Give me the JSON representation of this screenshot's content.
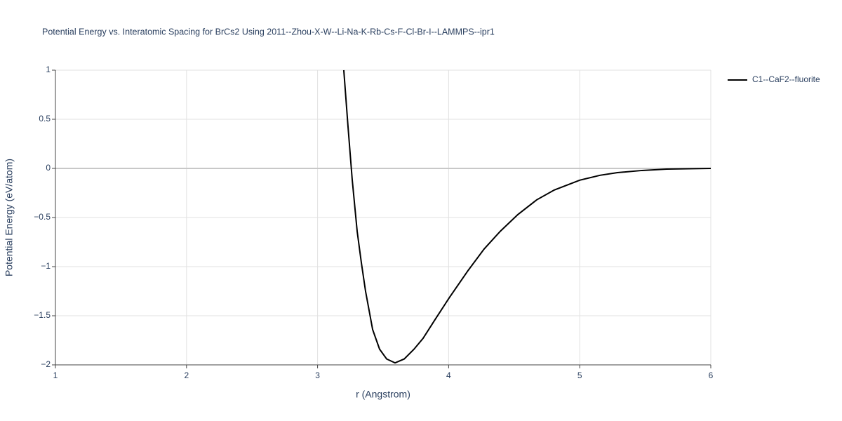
{
  "chart_data": {
    "type": "line",
    "title": "Potential Energy vs. Interatomic Spacing for BrCs2 Using 2011--Zhou-X-W--Li-Na-K-Rb-Cs-F-Cl-Br-I--LAMMPS--ipr1",
    "x_label": "r (Angstrom)",
    "y_label": "Potential Energy (eV/atom)",
    "xlim": [
      1,
      6
    ],
    "ylim": [
      -2,
      1
    ],
    "xticks": [
      1,
      2,
      3,
      4,
      5,
      6
    ],
    "yticks": [
      1,
      0.5,
      0,
      {
        "value": -0.5,
        "label": "−0.5"
      },
      {
        "value": -1,
        "label": "−1"
      },
      {
        "value": -1.5,
        "label": "−1.5"
      },
      {
        "value": -2,
        "label": "−2"
      }
    ],
    "grid": true,
    "legend": "top-right",
    "series": [
      {
        "name": "C1--CaF2--fluorite",
        "color": "#000000",
        "x": [
          3.2,
          3.232,
          3.264,
          3.302,
          3.334,
          3.366,
          3.42,
          3.473,
          3.527,
          3.591,
          3.661,
          3.736,
          3.805,
          3.896,
          4.003,
          4.148,
          4.271,
          4.394,
          4.528,
          4.672,
          4.806,
          5.0,
          5.155,
          5.288,
          5.475,
          5.663,
          6.0
        ],
        "values": [
          1.0,
          0.43,
          -0.11,
          -0.64,
          -0.96,
          -1.25,
          -1.64,
          -1.84,
          -1.94,
          -1.98,
          -1.94,
          -1.84,
          -1.73,
          -1.54,
          -1.32,
          -1.04,
          -0.82,
          -0.64,
          -0.47,
          -0.32,
          -0.22,
          -0.12,
          -0.07,
          -0.043,
          -0.021,
          -0.007,
          0
        ]
      }
    ]
  }
}
